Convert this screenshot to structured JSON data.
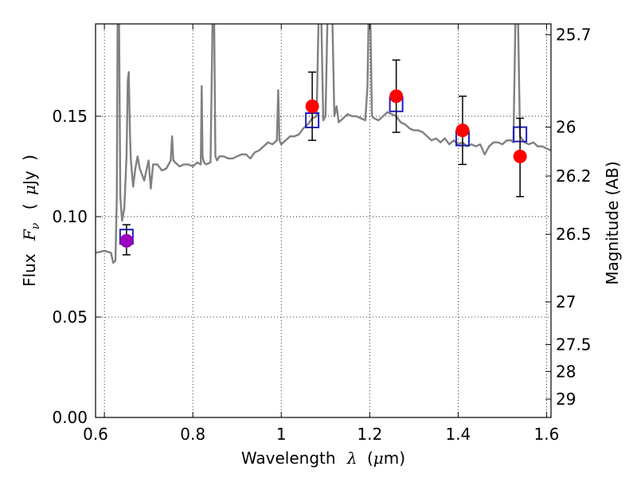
{
  "chart_data": {
    "type": "scatter",
    "title": "",
    "xlabel": {
      "prefix": "Wavelength",
      "symbol": "λ",
      "unit_open": "(",
      "unit_mu": "μ",
      "unit_rest": "m)"
    },
    "ylabel": {
      "prefix": "Flux",
      "symbol": "F",
      "sub": "ν",
      "unit_open": "(",
      "unit_mu": "μ",
      "unit_rest": "Jy",
      "unit_close": ")"
    },
    "y2label": "Magnitude (AB)",
    "xlim": [
      0.58,
      1.61
    ],
    "ylim": [
      0.0,
      0.196
    ],
    "grid": true,
    "grid_style": "dotted",
    "x_ticks": [
      {
        "value": 0.6,
        "label": ""
      },
      {
        "value": 0.8,
        "label": "0.8"
      },
      {
        "value": 1.0,
        "label": "1"
      },
      {
        "value": 1.2,
        "label": "1.2"
      },
      {
        "value": 1.4,
        "label": "1.4"
      },
      {
        "value": 1.6,
        "label": "1.6"
      }
    ],
    "x_edge_label": {
      "value": 0.58,
      "label": "0.6"
    },
    "y_ticks": [
      {
        "value": 0.0,
        "label": "0.00"
      },
      {
        "value": 0.05,
        "label": "0.05"
      },
      {
        "value": 0.1,
        "label": "0.10"
      },
      {
        "value": 0.15,
        "label": "0.15"
      }
    ],
    "y2_ticks": [
      {
        "mag": 25.7,
        "label": "25.7"
      },
      {
        "mag": 26.0,
        "label": "26"
      },
      {
        "mag": 26.2,
        "label": "26.2"
      },
      {
        "mag": 26.5,
        "label": "26.5"
      },
      {
        "mag": 27.0,
        "label": "27"
      },
      {
        "mag": 27.5,
        "label": "27.5"
      },
      {
        "mag": 28.0,
        "label": "28"
      },
      {
        "mag": 29.0,
        "label": "29"
      }
    ],
    "sed_model": {
      "color": "#808080",
      "x": [
        0.58,
        0.6,
        0.615,
        0.62,
        0.625,
        0.628,
        0.63,
        0.633,
        0.636,
        0.64,
        0.645,
        0.65,
        0.653,
        0.655,
        0.658,
        0.66,
        0.665,
        0.67,
        0.675,
        0.68,
        0.69,
        0.7,
        0.705,
        0.71,
        0.72,
        0.73,
        0.74,
        0.75,
        0.753,
        0.756,
        0.76,
        0.77,
        0.78,
        0.79,
        0.8,
        0.81,
        0.818,
        0.82,
        0.822,
        0.825,
        0.83,
        0.84,
        0.845,
        0.848,
        0.851,
        0.855,
        0.86,
        0.87,
        0.88,
        0.89,
        0.9,
        0.91,
        0.92,
        0.93,
        0.94,
        0.95,
        0.96,
        0.97,
        0.98,
        0.99,
        0.993,
        0.996,
        1.0,
        1.01,
        1.02,
        1.03,
        1.04,
        1.05,
        1.06,
        1.07,
        1.08,
        1.085,
        1.09,
        1.095,
        1.1,
        1.105,
        1.11,
        1.115,
        1.12,
        1.125,
        1.13,
        1.14,
        1.15,
        1.16,
        1.17,
        1.18,
        1.19,
        1.195,
        1.198,
        1.201,
        1.205,
        1.21,
        1.22,
        1.23,
        1.24,
        1.25,
        1.26,
        1.27,
        1.28,
        1.29,
        1.3,
        1.31,
        1.32,
        1.33,
        1.34,
        1.35,
        1.36,
        1.37,
        1.38,
        1.39,
        1.4,
        1.41,
        1.42,
        1.43,
        1.44,
        1.45,
        1.46,
        1.47,
        1.48,
        1.49,
        1.5,
        1.51,
        1.52,
        1.525,
        1.53,
        1.535,
        1.54,
        1.55,
        1.56,
        1.57,
        1.58,
        1.59,
        1.6,
        1.61
      ],
      "y": [
        0.082,
        0.083,
        0.082,
        0.077,
        0.078,
        0.11,
        0.205,
        0.205,
        0.11,
        0.098,
        0.104,
        0.13,
        0.168,
        0.172,
        0.14,
        0.128,
        0.115,
        0.124,
        0.13,
        0.124,
        0.118,
        0.128,
        0.114,
        0.126,
        0.126,
        0.123,
        0.124,
        0.128,
        0.14,
        0.128,
        0.127,
        0.125,
        0.126,
        0.126,
        0.125,
        0.127,
        0.126,
        0.165,
        0.13,
        0.127,
        0.126,
        0.127,
        0.205,
        0.205,
        0.13,
        0.128,
        0.13,
        0.13,
        0.129,
        0.129,
        0.13,
        0.131,
        0.131,
        0.129,
        0.132,
        0.133,
        0.135,
        0.137,
        0.136,
        0.138,
        0.163,
        0.138,
        0.136,
        0.138,
        0.14,
        0.14,
        0.141,
        0.144,
        0.146,
        0.149,
        0.15,
        0.205,
        0.205,
        0.148,
        0.15,
        0.205,
        0.205,
        0.205,
        0.15,
        0.155,
        0.147,
        0.149,
        0.151,
        0.15,
        0.15,
        0.149,
        0.148,
        0.165,
        0.205,
        0.205,
        0.15,
        0.149,
        0.148,
        0.15,
        0.152,
        0.151,
        0.15,
        0.147,
        0.146,
        0.144,
        0.143,
        0.143,
        0.142,
        0.14,
        0.138,
        0.139,
        0.137,
        0.139,
        0.136,
        0.138,
        0.136,
        0.137,
        0.135,
        0.136,
        0.135,
        0.136,
        0.131,
        0.135,
        0.137,
        0.137,
        0.136,
        0.138,
        0.138,
        0.137,
        0.205,
        0.205,
        0.14,
        0.137,
        0.136,
        0.137,
        0.135,
        0.135,
        0.134,
        0.133
      ]
    },
    "series": [
      {
        "marker": "square-open",
        "color": "#1f1fbf",
        "points": [
          {
            "x": 0.65,
            "y": 0.09
          },
          {
            "x": 1.07,
            "y": 0.148
          },
          {
            "x": 1.26,
            "y": 0.156
          },
          {
            "x": 1.41,
            "y": 0.139
          },
          {
            "x": 1.54,
            "y": 0.141
          }
        ]
      },
      {
        "marker": "circle",
        "color": "#ff0000",
        "points": [
          {
            "x": 1.07,
            "y": 0.155,
            "yerr_low": 0.138,
            "yerr_high": 0.172
          },
          {
            "x": 1.26,
            "y": 0.16,
            "yerr_low": 0.142,
            "yerr_high": 0.178
          },
          {
            "x": 1.41,
            "y": 0.143,
            "yerr_low": 0.126,
            "yerr_high": 0.16
          },
          {
            "x": 1.54,
            "y": 0.13,
            "yerr_low": 0.11,
            "yerr_high": 0.149
          }
        ]
      },
      {
        "marker": "circle",
        "color": "#9900bb",
        "points": [
          {
            "x": 0.65,
            "y": 0.088,
            "yerr_low": 0.081,
            "yerr_high": 0.096
          }
        ]
      }
    ]
  }
}
